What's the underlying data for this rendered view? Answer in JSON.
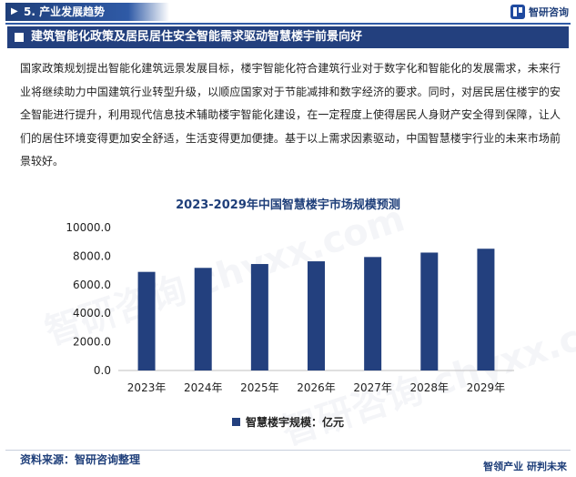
{
  "header": {
    "section_label": "5. 产业发展趋势",
    "brand_name": "智研咨询"
  },
  "title_bar": "建筑智能化政策及居民居住安全智能需求驱动智慧楼宇前景向好",
  "paragraph": "国家政策规划提出智能化建筑远景发展目标，楼宇智能化符合建筑行业对于数字化和智能化的发展需求，未来行业将继续助力中国建筑行业转型升级，以顺应国家对于节能减排和数字经济的要求。同时，对居民居住楼宇的安全智能进行提升，利用现代信息技术辅助楼宇智能化建设，在一定程度上使得居民人身财产安全得到保障，让人们的居住环境变得更加安全舒适，生活变得更加便捷。基于以上需求因素驱动，中国智慧楼宇行业的未来市场前景较好。",
  "chart_data": {
    "type": "bar",
    "title": "2023-2029年中国智慧楼宇市场规模预测",
    "categories": [
      "2023年",
      "2024年",
      "2025年",
      "2026年",
      "2027年",
      "2028年",
      "2029年"
    ],
    "series": [
      {
        "name": "智慧楼宇规模：亿元",
        "values": [
          6900,
          7180,
          7450,
          7640,
          7940,
          8250,
          8520
        ]
      }
    ],
    "yticks": [
      "0.0",
      "2000.0",
      "4000.0",
      "6000.0",
      "8000.0",
      "10000.0"
    ],
    "ylim": [
      0,
      10000
    ],
    "grid": false,
    "legend_position": "bottom",
    "bar_color": "#23407e"
  },
  "footer": {
    "source": "资料来源：智研咨询整理",
    "slogan": "智领产业  研判未来"
  },
  "watermark": "智研咨询 chyxx.com"
}
